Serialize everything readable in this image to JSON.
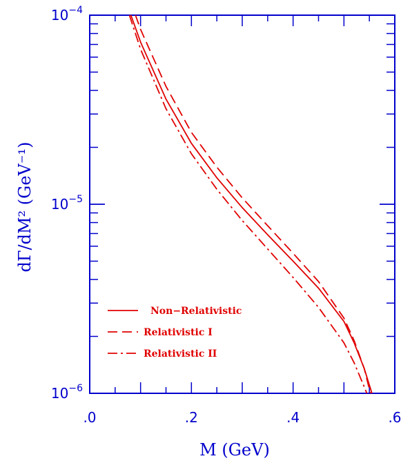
{
  "chart_data": {
    "type": "line",
    "xlabel": "M  (GeV)",
    "ylabel": "dΓ/dM² (GeV⁻¹)",
    "xlim": [
      0,
      0.6
    ],
    "ylim": [
      1e-06,
      0.0001
    ],
    "yscale": "log",
    "x_ticks": [
      {
        "value": 0,
        "label": ".0"
      },
      {
        "value": 0.2,
        "label": ".2"
      },
      {
        "value": 0.4,
        "label": ".4"
      },
      {
        "value": 0.6,
        "label": ".6"
      }
    ],
    "y_ticks": [
      {
        "value": 0.0001,
        "base": "10",
        "exp": "−4"
      },
      {
        "value": 1e-05,
        "base": "10",
        "exp": "−5"
      },
      {
        "value": 1e-06,
        "base": "10",
        "exp": "−6"
      }
    ],
    "grid": false,
    "legend_position": "bottom-left",
    "series": [
      {
        "name": "Non−Relativistic",
        "style": "solid",
        "points": [
          [
            0.081,
            0.0001
          ],
          [
            0.1,
            7.2e-05
          ],
          [
            0.15,
            3.6e-05
          ],
          [
            0.2,
            2.1e-05
          ],
          [
            0.25,
            1.38e-05
          ],
          [
            0.3,
            9.6e-06
          ],
          [
            0.35,
            6.9e-06
          ],
          [
            0.4,
            5e-06
          ],
          [
            0.45,
            3.6e-06
          ],
          [
            0.5,
            2.4e-06
          ],
          [
            0.52,
            1.85e-06
          ],
          [
            0.54,
            1.35e-06
          ],
          [
            0.555,
            1e-06
          ]
        ]
      },
      {
        "name": "Relativistic I",
        "style": "dashed",
        "points": [
          [
            0.09,
            0.0001
          ],
          [
            0.1,
            8.4e-05
          ],
          [
            0.15,
            4.2e-05
          ],
          [
            0.2,
            2.4e-05
          ],
          [
            0.25,
            1.57e-05
          ],
          [
            0.3,
            1.08e-05
          ],
          [
            0.35,
            7.7e-06
          ],
          [
            0.4,
            5.5e-06
          ],
          [
            0.45,
            3.9e-06
          ],
          [
            0.5,
            2.5e-06
          ],
          [
            0.52,
            1.9e-06
          ],
          [
            0.54,
            1.35e-06
          ],
          [
            0.552,
            1e-06
          ]
        ]
      },
      {
        "name": "Relativistic II",
        "style": "dashdot",
        "points": [
          [
            0.078,
            0.0001
          ],
          [
            0.1,
            6.6e-05
          ],
          [
            0.15,
            3.2e-05
          ],
          [
            0.2,
            1.85e-05
          ],
          [
            0.25,
            1.2e-05
          ],
          [
            0.3,
            8.2e-06
          ],
          [
            0.35,
            5.8e-06
          ],
          [
            0.4,
            4.1e-06
          ],
          [
            0.45,
            2.85e-06
          ],
          [
            0.5,
            1.85e-06
          ],
          [
            0.52,
            1.45e-06
          ],
          [
            0.54,
            1.08e-06
          ],
          [
            0.545,
            1e-06
          ]
        ]
      }
    ],
    "colors": {
      "axis": "#0000cc",
      "series": "#e00000"
    }
  }
}
